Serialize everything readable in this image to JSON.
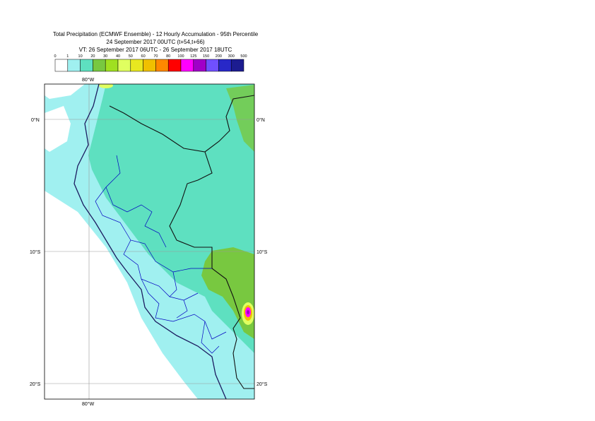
{
  "title": {
    "line1": "Total Precipitation (ECMWF Ensemble) - 12 Hourly Accumulation - 95th Percentile",
    "line2": "24 September 2017 00UTC (t+54,t+66)",
    "line3": "VT: 26 September 2017 06UTC - 26 September 2017 18UTC"
  },
  "legend": {
    "levels": [
      "0",
      "1",
      "10",
      "20",
      "30",
      "40",
      "50",
      "60",
      "70",
      "80",
      "100",
      "125",
      "150",
      "200",
      "300",
      "500"
    ],
    "colors": [
      "#ffffff",
      "#a0f0f0",
      "#5ee0c0",
      "#78c840",
      "#a0e020",
      "#e0ff60",
      "#e8e820",
      "#f0c000",
      "#ff8800",
      "#ff0000",
      "#ff00ff",
      "#a000c8",
      "#7050ff",
      "#2828c8",
      "#1c1c90"
    ]
  },
  "map": {
    "lon_labels": [
      "80°W",
      "80°W"
    ],
    "lat_labels": [
      "0°N",
      "0°N",
      "10°S",
      "10°S",
      "20°S",
      "20°S"
    ],
    "ocean_color": "#a0f0f0",
    "land_color": "#5ee0c0",
    "heavy_color": "#78c840"
  }
}
